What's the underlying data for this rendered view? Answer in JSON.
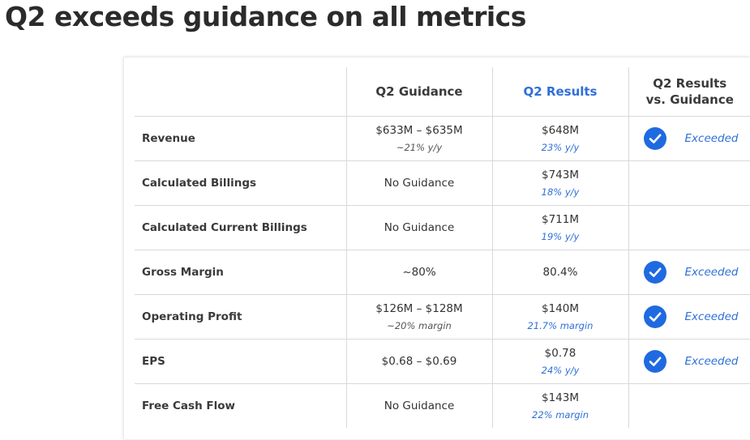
{
  "title": "Q2 exceeds guidance on all metrics",
  "colors": {
    "accent_blue": "#2f6fd8",
    "check_blue": "#1f6ae0",
    "text_dark": "#2f2f2f",
    "grid_line": "#d9d9d9"
  },
  "table": {
    "headers": {
      "metric": "",
      "guidance": "Q2 Guidance",
      "results": "Q2 Results",
      "comparison": "Q2 Results vs. Guidance"
    },
    "rows": [
      {
        "metric": "Revenue",
        "guidance": "$633M – $635M",
        "guidance_note": "~21% y/y",
        "result": "$648M",
        "result_note": "23% y/y",
        "status": "Exceeded",
        "status_icon": "check-circle-icon"
      },
      {
        "metric": "Calculated Billings",
        "guidance": "No Guidance",
        "guidance_note": "",
        "result": "$743M",
        "result_note": "18% y/y",
        "status": "",
        "status_icon": ""
      },
      {
        "metric": "Calculated Current Billings",
        "guidance": "No Guidance",
        "guidance_note": "",
        "result": "$711M",
        "result_note": "19% y/y",
        "status": "",
        "status_icon": ""
      },
      {
        "metric": "Gross Margin",
        "guidance": "~80%",
        "guidance_note": "",
        "result": "80.4%",
        "result_note": "",
        "status": "Exceeded",
        "status_icon": "check-circle-icon"
      },
      {
        "metric": "Operating Profit",
        "guidance": "$126M – $128M",
        "guidance_note": "~20% margin",
        "result": "$140M",
        "result_note": "21.7% margin",
        "status": "Exceeded",
        "status_icon": "check-circle-icon"
      },
      {
        "metric": "EPS",
        "guidance": "$0.68 – $0.69",
        "guidance_note": "",
        "result": "$0.78",
        "result_note": "24% y/y",
        "status": "Exceeded",
        "status_icon": "check-circle-icon"
      },
      {
        "metric": "Free Cash Flow",
        "guidance": "No Guidance",
        "guidance_note": "",
        "result": "$143M",
        "result_note": "22% margin",
        "status": "",
        "status_icon": ""
      }
    ]
  }
}
